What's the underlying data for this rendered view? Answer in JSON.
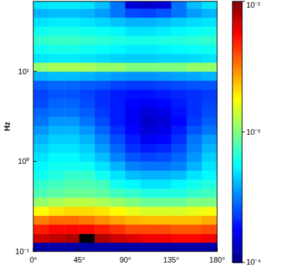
{
  "chart_data": {
    "type": "heatmap",
    "ylabel": "Hz",
    "log": "y",
    "x_bins": [
      0,
      15,
      30,
      45,
      60,
      75,
      90,
      105,
      120,
      135,
      150,
      165,
      180
    ],
    "y_bins": [
      0.1,
      0.126,
      0.158,
      0.2,
      0.251,
      0.316,
      0.398,
      0.501,
      0.631,
      0.794,
      1,
      1.26,
      1.58,
      2,
      2.51,
      3.16,
      3.98,
      5.01,
      6.31,
      7.94,
      10,
      12.6,
      15.8,
      20,
      25.1,
      31.6,
      39.8,
      50.1,
      63.1
    ],
    "xlim": [
      0,
      180
    ],
    "ylim": [
      0.1,
      60
    ],
    "xticks": [
      {
        "value": 0,
        "label": "0°"
      },
      {
        "value": 45,
        "label": "45°"
      },
      {
        "value": 90,
        "label": "90°"
      },
      {
        "value": 135,
        "label": "135°"
      },
      {
        "value": 180,
        "label": "180°"
      }
    ],
    "yticks": [
      {
        "value": 0.1,
        "label": "10⁻¹"
      },
      {
        "value": 1,
        "label": "10⁰"
      },
      {
        "value": 10,
        "label": "10¹"
      }
    ],
    "cells": [
      [
        0.00012,
        0.00012,
        0.00012,
        0.00012,
        0.00012,
        0.00012,
        0.00012,
        0.00012,
        0.00012,
        0.00012,
        0.00012,
        0.00012
      ],
      [
        0.007,
        0.0075,
        0.008,
        0.012,
        0.008,
        0.007,
        0.0065,
        0.006,
        0.006,
        0.0055,
        0.0055,
        0.006
      ],
      [
        0.005,
        0.0055,
        0.0055,
        0.0055,
        0.005,
        0.0045,
        0.004,
        0.004,
        0.004,
        0.0038,
        0.0038,
        0.004
      ],
      [
        0.0032,
        0.0035,
        0.0035,
        0.0033,
        0.003,
        0.0027,
        0.0025,
        0.0024,
        0.0024,
        0.0024,
        0.0024,
        0.0026
      ],
      [
        0.0018,
        0.002,
        0.0021,
        0.0021,
        0.002,
        0.0018,
        0.0016,
        0.0015,
        0.0015,
        0.0015,
        0.0016,
        0.0017
      ],
      [
        0.0011,
        0.0012,
        0.0013,
        0.0013,
        0.0012,
        0.0011,
        0.001,
        0.0009,
        0.0009,
        0.0009,
        0.001,
        0.001
      ],
      [
        0.0008,
        0.00085,
        0.0009,
        0.0009,
        0.00085,
        0.00075,
        0.0007,
        0.00065,
        0.00065,
        0.00065,
        0.0007,
        0.00075
      ],
      [
        0.0007,
        0.00075,
        0.0008,
        0.0008,
        0.00075,
        0.0006,
        0.00055,
        0.0005,
        0.0005,
        0.00055,
        0.0006,
        0.00065
      ],
      [
        0.0006,
        0.00065,
        0.0007,
        0.0007,
        0.0006,
        0.0005,
        0.00042,
        0.0004,
        0.0004,
        0.00042,
        0.0005,
        0.00055
      ],
      [
        0.00055,
        0.0006,
        0.0006,
        0.0006,
        0.0005,
        0.0004,
        0.00032,
        0.0003,
        0.0003,
        0.00032,
        0.0004,
        0.0005
      ],
      [
        0.0005,
        0.00055,
        0.00055,
        0.0005,
        0.00042,
        0.00032,
        0.00026,
        0.00024,
        0.00025,
        0.00028,
        0.00035,
        0.00045
      ],
      [
        0.00045,
        0.0005,
        0.0005,
        0.00045,
        0.00036,
        0.00028,
        0.00022,
        0.0002,
        0.00021,
        0.00025,
        0.00032,
        0.0004
      ],
      [
        0.0004,
        0.00045,
        0.00045,
        0.0004,
        0.00032,
        0.00025,
        0.0002,
        0.00017,
        0.00018,
        0.00022,
        0.0003,
        0.00036
      ],
      [
        0.00035,
        0.0004,
        0.0004,
        0.00035,
        0.00028,
        0.00022,
        0.00018,
        0.00015,
        0.00016,
        0.0002,
        0.00026,
        0.0003
      ],
      [
        0.0003,
        0.00035,
        0.00035,
        0.0003,
        0.00025,
        0.0002,
        0.00017,
        0.00014,
        0.00015,
        0.00018,
        0.00023,
        0.00027
      ],
      [
        0.00028,
        0.0003,
        0.0003,
        0.00027,
        0.00023,
        0.0002,
        0.00017,
        0.00015,
        0.00016,
        0.00019,
        0.00022,
        0.00025
      ],
      [
        0.00025,
        0.00028,
        0.00028,
        0.00025,
        0.00022,
        0.0002,
        0.00018,
        0.00017,
        0.00018,
        0.0002,
        0.00022,
        0.00024
      ],
      [
        0.00024,
        0.00026,
        0.00026,
        0.00024,
        0.00022,
        0.0002,
        0.00019,
        0.00019,
        0.0002,
        0.00021,
        0.00022,
        0.00023
      ],
      [
        0.00027,
        0.00028,
        0.00028,
        0.00027,
        0.00026,
        0.00024,
        0.00023,
        0.00023,
        0.00024,
        0.00025,
        0.00026,
        0.00026
      ],
      [
        0.0004,
        0.00042,
        0.00042,
        0.0004,
        0.00038,
        0.00036,
        0.00035,
        0.00035,
        0.00036,
        0.00037,
        0.00038,
        0.0004
      ],
      [
        0.0011,
        0.0012,
        0.0012,
        0.0012,
        0.0011,
        0.0011,
        0.001,
        0.001,
        0.001,
        0.001,
        0.0011,
        0.0011
      ],
      [
        0.0005,
        0.00052,
        0.00052,
        0.0005,
        0.00048,
        0.00046,
        0.00045,
        0.00045,
        0.00046,
        0.00047,
        0.00048,
        0.0005
      ],
      [
        0.0006,
        0.00062,
        0.00062,
        0.0006,
        0.00058,
        0.00055,
        0.00052,
        0.00052,
        0.00054,
        0.00056,
        0.00058,
        0.0006
      ],
      [
        0.0007,
        0.00072,
        0.00072,
        0.0007,
        0.00068,
        0.00065,
        0.00062,
        0.00062,
        0.00064,
        0.00066,
        0.00068,
        0.0007
      ],
      [
        0.0006,
        0.00062,
        0.00062,
        0.0006,
        0.00058,
        0.00055,
        0.0005,
        0.0005,
        0.00052,
        0.00055,
        0.00058,
        0.0006
      ],
      [
        0.0005,
        0.00052,
        0.00052,
        0.0005,
        0.00047,
        0.00043,
        0.0004,
        0.0004,
        0.00042,
        0.00045,
        0.00048,
        0.0005
      ],
      [
        0.0004,
        0.00042,
        0.00042,
        0.0004,
        0.00036,
        0.0003,
        0.00025,
        0.00024,
        0.00026,
        0.0003,
        0.00036,
        0.0004
      ],
      [
        0.0005,
        0.00052,
        0.00052,
        0.0005,
        0.00042,
        0.0003,
        0.00015,
        0.00014,
        0.00015,
        0.0003,
        0.00042,
        0.0005
      ]
    ],
    "colorbar": {
      "lim": [
        0.0001,
        0.01
      ],
      "ticks": [
        {
          "value": 0.0001,
          "label": "10⁻⁴"
        },
        {
          "value": 0.001,
          "label": "10⁻³"
        },
        {
          "value": 0.01,
          "label": "10⁻²"
        }
      ]
    }
  }
}
